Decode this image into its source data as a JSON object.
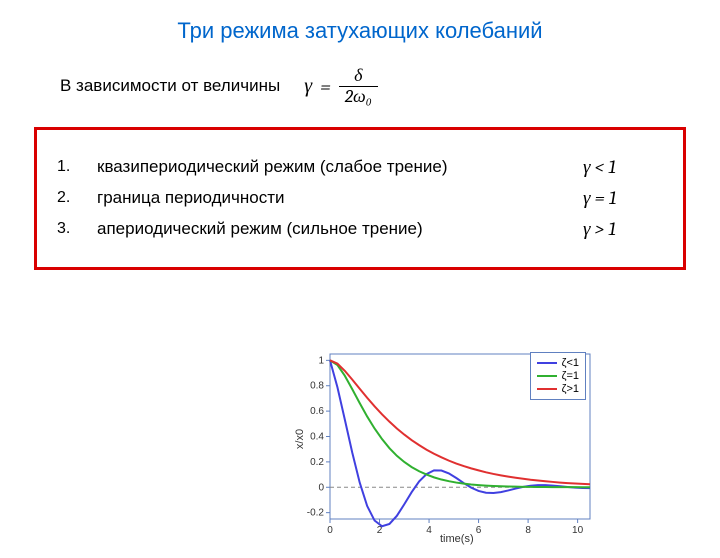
{
  "title": "Три режима затухающих колебаний",
  "subtitle": "В зависимости от величины",
  "formula": {
    "lhs": "γ",
    "eq": "=",
    "num": "δ",
    "den": "2ω₀"
  },
  "regimes": [
    {
      "n": "1.",
      "text": "квазипериодический режим (слабое трение)",
      "cond": "γ < 1"
    },
    {
      "n": "2.",
      "text": "граница периодичности",
      "cond": "γ = 1"
    },
    {
      "n": "3.",
      "text": "апериодический режим (сильное трение)",
      "cond": "γ > 1"
    }
  ],
  "chart": {
    "type": "line",
    "xlabel": "time(s)",
    "ylabel": "x/x0",
    "xlim": [
      0,
      10.5
    ],
    "ylim": [
      -0.25,
      1.05
    ],
    "xticks": [
      0,
      2,
      4,
      6,
      8,
      10
    ],
    "yticks": [
      -0.2,
      0,
      0.2,
      0.4,
      0.6,
      0.8,
      1
    ],
    "background": "#ffffff",
    "axis_color": "#6080c0",
    "grid_color": "#e0e0e0",
    "zero_line_color": "#888888",
    "font_size": 10,
    "legend": [
      {
        "label": "ζ<1",
        "color": "#4040e0"
      },
      {
        "label": "ζ=1",
        "color": "#30b030"
      },
      {
        "label": "ζ>1",
        "color": "#e03030"
      }
    ],
    "series": [
      {
        "name": "underdamped",
        "color": "#4040e0",
        "width": 2,
        "x": [
          0,
          0.3,
          0.6,
          0.9,
          1.2,
          1.5,
          1.8,
          2.1,
          2.4,
          2.7,
          3.0,
          3.3,
          3.6,
          3.9,
          4.2,
          4.5,
          4.8,
          5.1,
          5.4,
          5.7,
          6.0,
          6.3,
          6.6,
          6.9,
          7.2,
          7.5,
          7.8,
          8.1,
          8.4,
          8.7,
          9.0,
          9.3,
          9.6,
          9.9,
          10.2,
          10.5
        ],
        "y": [
          1.0,
          0.788,
          0.532,
          0.272,
          0.037,
          -0.147,
          -0.262,
          -0.307,
          -0.289,
          -0.225,
          -0.134,
          -0.038,
          0.046,
          0.104,
          0.133,
          0.132,
          0.109,
          0.073,
          0.033,
          -0.003,
          -0.029,
          -0.043,
          -0.045,
          -0.038,
          -0.025,
          -0.01,
          0.003,
          0.012,
          0.017,
          0.017,
          0.013,
          0.008,
          0.002,
          -0.003,
          -0.006,
          -0.007
        ]
      },
      {
        "name": "critical",
        "color": "#30b030",
        "width": 2,
        "x": [
          0,
          0.3,
          0.6,
          0.9,
          1.2,
          1.5,
          1.8,
          2.1,
          2.4,
          2.7,
          3.0,
          3.3,
          3.6,
          3.9,
          4.2,
          4.5,
          4.8,
          5.1,
          5.4,
          5.7,
          6.0,
          6.3,
          6.6,
          6.9,
          7.2,
          7.5,
          7.8,
          8.1,
          8.4,
          8.7,
          9.0,
          9.3,
          9.6,
          9.9,
          10.2,
          10.5
        ],
        "y": [
          1.0,
          0.963,
          0.878,
          0.772,
          0.663,
          0.558,
          0.463,
          0.38,
          0.308,
          0.248,
          0.199,
          0.159,
          0.126,
          0.1,
          0.078,
          0.061,
          0.048,
          0.037,
          0.029,
          0.022,
          0.017,
          0.013,
          0.01,
          0.008,
          0.006,
          0.005,
          0.003,
          0.003,
          0.002,
          0.002,
          0.001,
          0.001,
          0.001,
          0.001,
          0.0,
          0.0
        ]
      },
      {
        "name": "overdamped",
        "color": "#e03030",
        "width": 2,
        "x": [
          0,
          0.3,
          0.6,
          0.9,
          1.2,
          1.5,
          1.8,
          2.1,
          2.4,
          2.7,
          3.0,
          3.3,
          3.6,
          3.9,
          4.2,
          4.5,
          4.8,
          5.1,
          5.4,
          5.7,
          6.0,
          6.3,
          6.6,
          6.9,
          7.2,
          7.5,
          7.8,
          8.1,
          8.4,
          8.7,
          9.0,
          9.3,
          9.6,
          9.9,
          10.2,
          10.5
        ],
        "y": [
          1.0,
          0.974,
          0.917,
          0.848,
          0.776,
          0.705,
          0.638,
          0.575,
          0.517,
          0.463,
          0.415,
          0.371,
          0.332,
          0.296,
          0.264,
          0.236,
          0.21,
          0.187,
          0.167,
          0.149,
          0.133,
          0.118,
          0.105,
          0.094,
          0.084,
          0.075,
          0.067,
          0.059,
          0.053,
          0.047,
          0.042,
          0.037,
          0.033,
          0.03,
          0.027,
          0.024
        ]
      }
    ]
  }
}
